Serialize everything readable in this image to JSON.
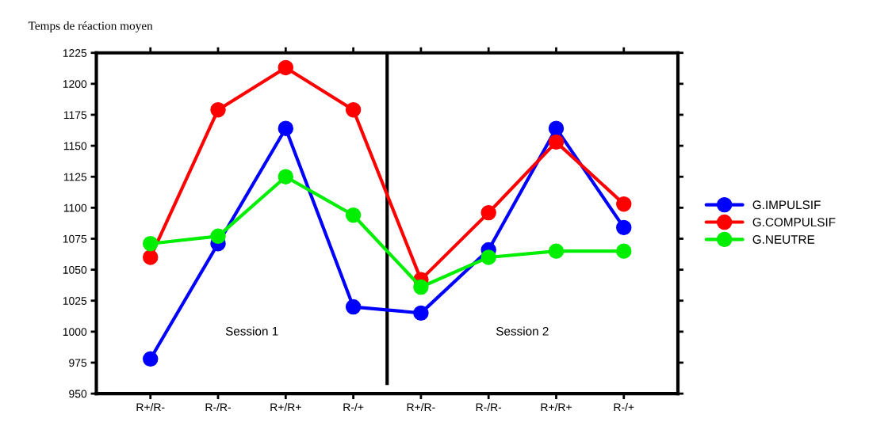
{
  "chart_data": {
    "type": "line",
    "ylabel": "Temps de réaction moyen",
    "categories": [
      "R+/R-",
      "R-/R-",
      "R+/R+",
      "R-/+",
      "R+/R-",
      "R-/R-",
      "R+/R+",
      "R-/+"
    ],
    "series": [
      {
        "name": "G.IMPULSIF",
        "color": "#0000ff",
        "values": [
          978,
          1071,
          1164,
          1020,
          1015,
          1066,
          1164,
          1084
        ]
      },
      {
        "name": "G.COMPULSIF",
        "color": "#ff0000",
        "values": [
          1060,
          1179,
          1213,
          1179,
          1042,
          1096,
          1153,
          1103
        ]
      },
      {
        "name": "G.NEUTRE",
        "color": "#00ee00",
        "values": [
          1071,
          1077,
          1125,
          1094,
          1036,
          1060,
          1065,
          1065
        ]
      }
    ],
    "ylim": [
      950,
      1225
    ],
    "yticks": [
      950,
      975,
      1000,
      1025,
      1050,
      1075,
      1100,
      1125,
      1150,
      1175,
      1200,
      1225
    ],
    "annotations": [
      "Session 1",
      "Session 2"
    ],
    "marker": "circle",
    "line_style": "solid",
    "grid": false,
    "legend": "right"
  }
}
